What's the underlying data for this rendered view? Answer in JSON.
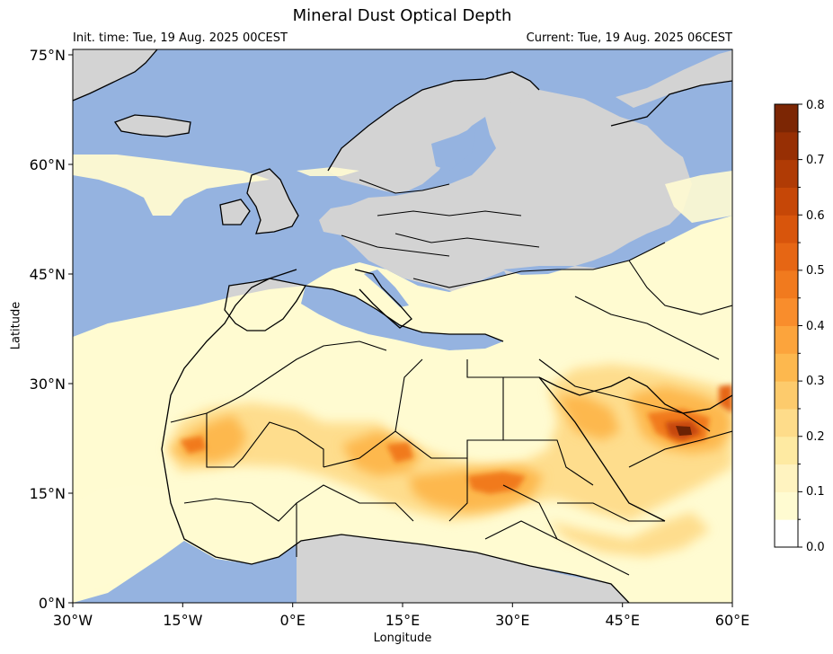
{
  "title": "Mineral Dust Optical Depth",
  "init_time": "Init. time: Tue, 19 Aug. 2025 00CEST",
  "current_time": "Current: Tue, 19 Aug. 2025 06CEST",
  "xlabel": "Longitude",
  "ylabel": "Latitude",
  "lon_ticks": [
    "30°W",
    "15°W",
    "0°E",
    "15°E",
    "30°E",
    "45°E",
    "60°E"
  ],
  "lat_ticks": [
    "0°N",
    "15°N",
    "30°N",
    "45°N",
    "60°N",
    "75°N"
  ],
  "colorbar": {
    "labels": [
      "0.0",
      "0.1",
      "0.2",
      "0.3",
      "0.4",
      "0.5",
      "0.6",
      "0.7",
      "0.8"
    ],
    "levels": [
      0.0,
      0.05,
      0.1,
      0.15,
      0.2,
      0.25,
      0.3,
      0.35,
      0.4,
      0.45,
      0.5,
      0.55,
      0.6,
      0.65,
      0.7,
      0.75,
      0.8
    ],
    "colors": [
      "#ffffff",
      "#fffbd1",
      "#fff3c0",
      "#feeaa2",
      "#fedc8a",
      "#fdcb6c",
      "#fdb84e",
      "#fca43c",
      "#f98d2c",
      "#f17a1e",
      "#e66614",
      "#d8550c",
      "#c64707",
      "#b03b05",
      "#972f04",
      "#7c2604"
    ]
  },
  "colors": {
    "ocean": "#95b3e0",
    "land": "#d3d3d3",
    "dust_low": "#fffbd1",
    "dust_mid": "#fdcb6c",
    "dust_high": "#d8550c",
    "dust_max": "#6b2204"
  }
}
